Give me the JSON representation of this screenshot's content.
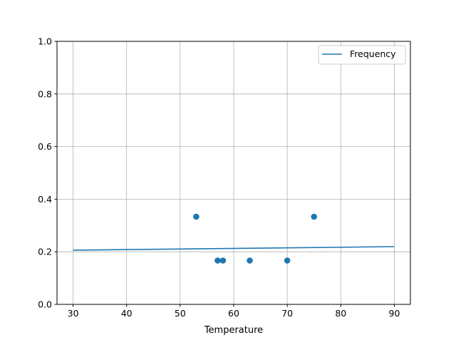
{
  "chart_data": {
    "type": "scatter",
    "title": "",
    "xlabel": "Temperature",
    "ylabel": "",
    "xlim": [
      27,
      93
    ],
    "ylim": [
      0,
      1
    ],
    "xticks": [
      30,
      40,
      50,
      60,
      70,
      80,
      90
    ],
    "yticks": [
      0.0,
      0.2,
      0.4,
      0.6,
      0.8,
      1.0
    ],
    "xtick_labels": [
      "30",
      "40",
      "50",
      "60",
      "70",
      "80",
      "90"
    ],
    "ytick_labels": [
      "0.0",
      "0.2",
      "0.4",
      "0.6",
      "0.8",
      "1.0"
    ],
    "grid": true,
    "legend": {
      "placement": "top-right",
      "entries": [
        "Frequency"
      ]
    },
    "color": "#1f77b4",
    "line": {
      "name": "Frequency",
      "x": [
        30,
        90
      ],
      "y": [
        0.206,
        0.2195
      ]
    },
    "points": {
      "x": [
        53,
        57,
        58,
        63,
        70,
        75
      ],
      "y": [
        0.3333,
        0.1667,
        0.1667,
        0.1667,
        0.1667,
        0.3333
      ]
    }
  }
}
